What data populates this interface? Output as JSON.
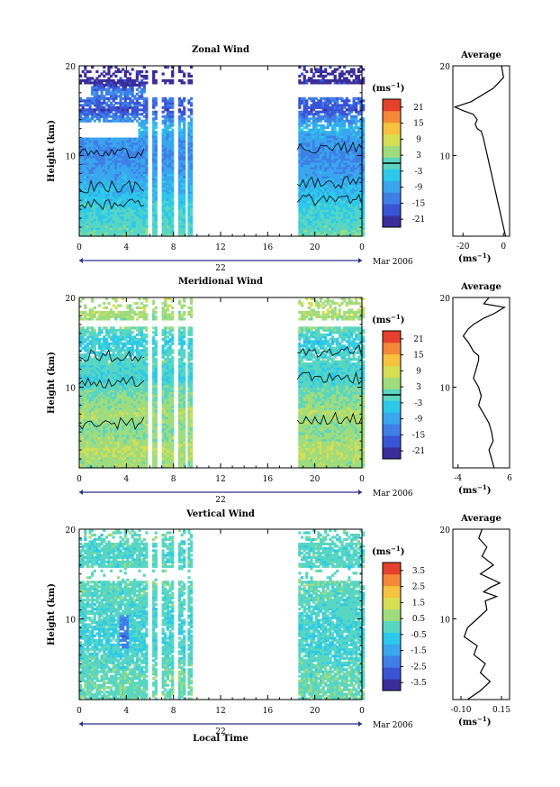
{
  "colors": {
    "scale": [
      "#3b2d9a",
      "#3a54d6",
      "#3f7fe6",
      "#39a6ee",
      "#2cc9ea",
      "#59d6c2",
      "#9fdc7e",
      "#d6de53",
      "#f6c23f",
      "#f4893a",
      "#e6412c"
    ],
    "contour": "#000000",
    "axis": "#000000",
    "timebar": "#2a2f8f"
  },
  "figure": {
    "xlabel": "Local Time",
    "date_label": "Mar 2006",
    "ylabel": "Height (km)",
    "avg_title": "Average",
    "unit_label": "(ms",
    "unit_sup": "−1",
    "unit_close": ")",
    "avg_unit": "(ms",
    "avg_unit_sup": "−1",
    "avg_unit_close": ")"
  },
  "chart_data": [
    {
      "type": "heatmap",
      "title": "Zonal Wind",
      "xlabel": "Local Time",
      "ylabel": "Height (km)",
      "x_ticks": [
        "0",
        "4",
        "8",
        "12",
        "16",
        "20",
        "0"
      ],
      "day_label": "22",
      "y_ticks": [
        "10",
        "20"
      ],
      "xlim": [
        0,
        24
      ],
      "ylim": [
        1,
        20
      ],
      "colorbar_label": "(ms−1)",
      "colorbar_ticks": [
        "21",
        "15",
        "9",
        "3",
        "-3",
        "-9",
        "-15",
        "-21"
      ],
      "colorbar_range": [
        -24,
        24
      ],
      "data_windows": [
        [
          0,
          5.7
        ],
        [
          6.1,
          6.5
        ],
        [
          6.9,
          7.9
        ],
        [
          8.3,
          8.9
        ],
        [
          9.1,
          9.5
        ],
        [
          18.5,
          24
        ]
      ],
      "value_profile_by_height": [
        [
          1,
          1
        ],
        [
          4,
          -3
        ],
        [
          7,
          -8
        ],
        [
          10,
          -12
        ],
        [
          12,
          -9
        ],
        [
          13,
          -6
        ],
        [
          15,
          -18
        ],
        [
          17,
          -12
        ],
        [
          18,
          -22
        ]
      ],
      "average_profile": {
        "title": "Average",
        "xlabel": "(ms−1)",
        "x_ticks": [
          "-20",
          "0"
        ],
        "xlim": [
          -25,
          3
        ],
        "y_ticks": [
          "10",
          "20"
        ],
        "x": [
          1,
          0,
          -1,
          -2,
          -3,
          -4,
          -5,
          -6,
          -7,
          -8,
          -9,
          -10,
          -11,
          -13,
          -14,
          -13,
          -15,
          -20,
          -24,
          -16,
          -5,
          0,
          -1
        ],
        "y": [
          1,
          2,
          3,
          4,
          5,
          6,
          7,
          8,
          9,
          10,
          11,
          12,
          12.7,
          13,
          13.5,
          14,
          14.6,
          15,
          15.4,
          16,
          17.5,
          18.7,
          20
        ]
      }
    },
    {
      "type": "heatmap",
      "title": "Meridional Wind",
      "xlabel": "Local Time",
      "ylabel": "Height (km)",
      "x_ticks": [
        "0",
        "4",
        "8",
        "12",
        "16",
        "20",
        "0"
      ],
      "day_label": "22",
      "y_ticks": [
        "10",
        "20"
      ],
      "xlim": [
        0,
        24
      ],
      "ylim": [
        1,
        20
      ],
      "colorbar_label": "(ms−1)",
      "colorbar_ticks": [
        "21",
        "15",
        "9",
        "3",
        "-3",
        "-9",
        "-15",
        "-21"
      ],
      "colorbar_range": [
        -24,
        24
      ],
      "data_windows": [
        [
          0,
          5.7
        ],
        [
          6.1,
          6.5
        ],
        [
          6.9,
          7.9
        ],
        [
          8.3,
          8.9
        ],
        [
          9.1,
          9.5
        ],
        [
          18.5,
          24
        ]
      ],
      "value_profile_by_height": [
        [
          1,
          4
        ],
        [
          3,
          6
        ],
        [
          5,
          3
        ],
        [
          7,
          5
        ],
        [
          9,
          2
        ],
        [
          11,
          -2
        ],
        [
          13,
          0
        ],
        [
          15,
          -4
        ],
        [
          17,
          3
        ],
        [
          18,
          5
        ]
      ],
      "average_profile": {
        "title": "Average",
        "xlabel": "(ms−1)",
        "x_ticks": [
          "-4",
          "6"
        ],
        "xlim": [
          -5,
          6
        ],
        "y_ticks": [
          "10",
          "20"
        ],
        "x": [
          3,
          2.5,
          2,
          2.8,
          2.5,
          2,
          1,
          0,
          0.5,
          0,
          -1,
          -0.5,
          0,
          0,
          -1,
          -2,
          -3,
          -2,
          -1,
          1,
          3,
          5,
          1,
          2
        ],
        "y": [
          1,
          2,
          3,
          4,
          5,
          6,
          7,
          8,
          9,
          10,
          11,
          12,
          13,
          13.5,
          14,
          15,
          15.7,
          16.5,
          17,
          17.7,
          18.2,
          18.9,
          19.3,
          20
        ]
      }
    },
    {
      "type": "heatmap",
      "title": "Vertical Wind",
      "xlabel": "Local Time",
      "ylabel": "Height (km)",
      "x_ticks": [
        "0",
        "4",
        "8",
        "12",
        "16",
        "20",
        "0"
      ],
      "day_label": "22",
      "y_ticks": [
        "10",
        "20"
      ],
      "xlim": [
        0,
        24
      ],
      "ylim": [
        1,
        20
      ],
      "colorbar_label": "(ms−1)",
      "colorbar_ticks": [
        "3.5",
        "2.5",
        "1.5",
        "0.5",
        "-0.5",
        "-1.5",
        "-2.5",
        "-3.5"
      ],
      "colorbar_range": [
        -4,
        4
      ],
      "data_windows": [
        [
          0,
          5.7
        ],
        [
          6.1,
          6.5
        ],
        [
          6.9,
          7.9
        ],
        [
          8.3,
          8.9
        ],
        [
          9.1,
          9.5
        ],
        [
          18.5,
          24
        ]
      ],
      "value_profile_by_height": [
        [
          1,
          0.2
        ],
        [
          5,
          0
        ],
        [
          8,
          -0.4
        ],
        [
          10,
          -0.2
        ],
        [
          14,
          0.1
        ],
        [
          17,
          -0.1
        ],
        [
          20,
          0
        ]
      ],
      "average_profile": {
        "title": "Average",
        "xlabel": "(ms−1)",
        "x_ticks": [
          "-0.10",
          "0.15"
        ],
        "xlim": [
          -0.15,
          0.2
        ],
        "y_ticks": [
          "10",
          "20"
        ],
        "x": [
          -0.06,
          0.02,
          0.08,
          0.02,
          0.05,
          -0.02,
          0.0,
          -0.08,
          -0.06,
          0.0,
          0.06,
          0.05,
          0.12,
          0.04,
          0.08,
          0.14,
          0.02,
          0.1,
          0.03,
          0.06,
          0.01,
          0.03
        ],
        "y": [
          1,
          2,
          3,
          4,
          5,
          6,
          7,
          8,
          9,
          10,
          11,
          12,
          12.5,
          13,
          13.5,
          14,
          15,
          16,
          17,
          18,
          19,
          20
        ]
      }
    }
  ]
}
